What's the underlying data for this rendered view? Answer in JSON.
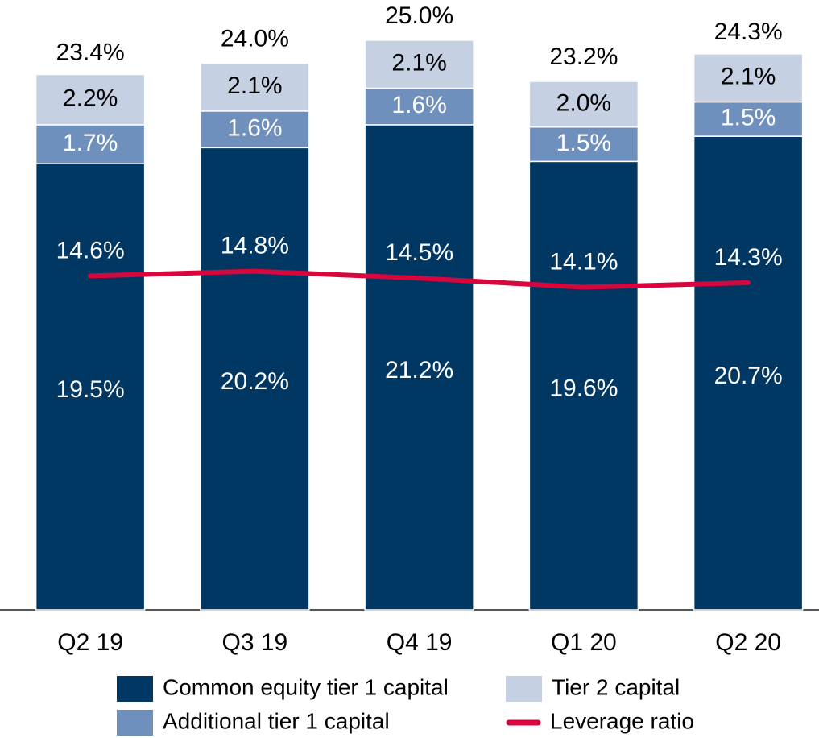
{
  "chart_data": {
    "type": "bar",
    "categories": [
      "Q2 19",
      "Q3 19",
      "Q4 19",
      "Q1 20",
      "Q2 20"
    ],
    "ylim": [
      0,
      25
    ],
    "series": [
      {
        "name": "Common equity tier 1 capital",
        "color": "#003863",
        "values": [
          19.5,
          20.2,
          21.2,
          19.6,
          20.7
        ],
        "value_labels": [
          "19.5%",
          "20.2%",
          "21.2%",
          "19.6%",
          "20.7%"
        ]
      },
      {
        "name": "Additional tier 1 capital",
        "color": "#6f8fbd",
        "values": [
          1.7,
          1.6,
          1.6,
          1.5,
          1.5
        ],
        "value_labels": [
          "1.7%",
          "1.6%",
          "1.6%",
          "1.5%",
          "1.5%"
        ]
      },
      {
        "name": "Tier 2 capital",
        "color": "#c5d0e2",
        "values": [
          2.2,
          2.1,
          2.1,
          2.0,
          2.1
        ],
        "value_labels": [
          "2.2%",
          "2.1%",
          "2.1%",
          "2.0%",
          "2.1%"
        ]
      },
      {
        "name": "Leverage ratio",
        "type": "line",
        "color": "#d7063d",
        "values": [
          14.6,
          14.8,
          14.5,
          14.1,
          14.3
        ],
        "value_labels": [
          "14.6%",
          "14.8%",
          "14.5%",
          "14.1%",
          "14.3%"
        ]
      }
    ],
    "totals": {
      "values": [
        23.4,
        24.0,
        25.0,
        23.2,
        24.3
      ],
      "value_labels": [
        "23.4%",
        "24.0%",
        "25.0%",
        "23.2%",
        "24.3%"
      ]
    }
  }
}
